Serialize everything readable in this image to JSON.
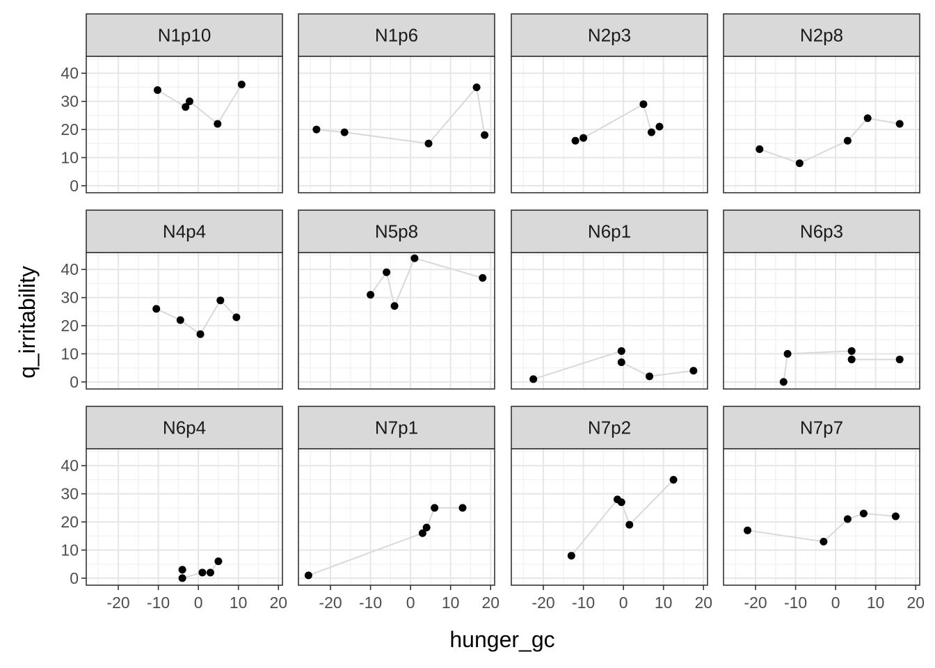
{
  "chart_data": {
    "type": "scatter",
    "xlabel": "hunger_gc",
    "ylabel": "q_irritability",
    "xlim": [
      -28,
      21
    ],
    "ylim": [
      -2.5,
      46
    ],
    "x_ticks": [
      -20,
      -10,
      0,
      10,
      20
    ],
    "x_tick_labels": [
      "-20",
      "-10",
      "0",
      "10",
      "20"
    ],
    "y_ticks": [
      0,
      10,
      20,
      30,
      40
    ],
    "y_tick_labels": [
      "0",
      "10",
      "20",
      "30",
      "40"
    ],
    "grid": true,
    "point_color": "#000000",
    "line_color": "#d9d9d9",
    "strip_fill": "#d9d9d9",
    "panels": [
      {
        "label": "N1p10",
        "points": [
          [
            -10.2,
            34
          ],
          [
            -3.2,
            28
          ],
          [
            -2.2,
            30
          ],
          [
            4.8,
            22
          ],
          [
            10.8,
            36
          ]
        ]
      },
      {
        "label": "N1p6",
        "points": [
          [
            -23.5,
            20
          ],
          [
            -16.5,
            19
          ],
          [
            4.5,
            15
          ],
          [
            16.5,
            35
          ],
          [
            18.5,
            18
          ]
        ]
      },
      {
        "label": "N2p3",
        "points": [
          [
            -12,
            16
          ],
          [
            -10,
            17
          ],
          [
            5,
            29
          ],
          [
            7,
            19
          ],
          [
            9,
            21
          ]
        ]
      },
      {
        "label": "N2p8",
        "points": [
          [
            -19,
            13
          ],
          [
            -9,
            8
          ],
          [
            3,
            16
          ],
          [
            8,
            24
          ],
          [
            16,
            22
          ]
        ]
      },
      {
        "label": "N4p4",
        "points": [
          [
            -10.5,
            26
          ],
          [
            -4.5,
            22
          ],
          [
            0.5,
            17
          ],
          [
            5.5,
            29
          ],
          [
            9.5,
            23
          ]
        ]
      },
      {
        "label": "N5p8",
        "points": [
          [
            -10,
            31
          ],
          [
            -6,
            39
          ],
          [
            -4,
            27
          ],
          [
            1,
            44
          ],
          [
            18,
            37
          ]
        ]
      },
      {
        "label": "N6p1",
        "points": [
          [
            -22.5,
            1
          ],
          [
            -0.5,
            11
          ],
          [
            -0.5,
            7
          ],
          [
            6.5,
            2
          ],
          [
            17.5,
            4
          ]
        ]
      },
      {
        "label": "N6p3",
        "points": [
          [
            -13,
            0
          ],
          [
            -12,
            10
          ],
          [
            4,
            11
          ],
          [
            4,
            8
          ],
          [
            16,
            8
          ]
        ]
      },
      {
        "label": "N6p4",
        "points": [
          [
            -4,
            3
          ],
          [
            -4,
            0
          ],
          [
            1,
            2
          ],
          [
            3,
            2
          ],
          [
            5,
            6
          ]
        ]
      },
      {
        "label": "N7p1",
        "points": [
          [
            -25.5,
            1
          ],
          [
            3,
            16
          ],
          [
            4,
            18
          ],
          [
            6,
            25
          ],
          [
            13,
            25
          ]
        ]
      },
      {
        "label": "N7p2",
        "points": [
          [
            -13,
            8
          ],
          [
            -1.5,
            28
          ],
          [
            -0.5,
            27
          ],
          [
            1.5,
            19
          ],
          [
            12.5,
            35
          ]
        ]
      },
      {
        "label": "N7p7",
        "points": [
          [
            -22,
            17
          ],
          [
            -3,
            13
          ],
          [
            3,
            21
          ],
          [
            7,
            23
          ],
          [
            15,
            22
          ]
        ]
      }
    ]
  }
}
